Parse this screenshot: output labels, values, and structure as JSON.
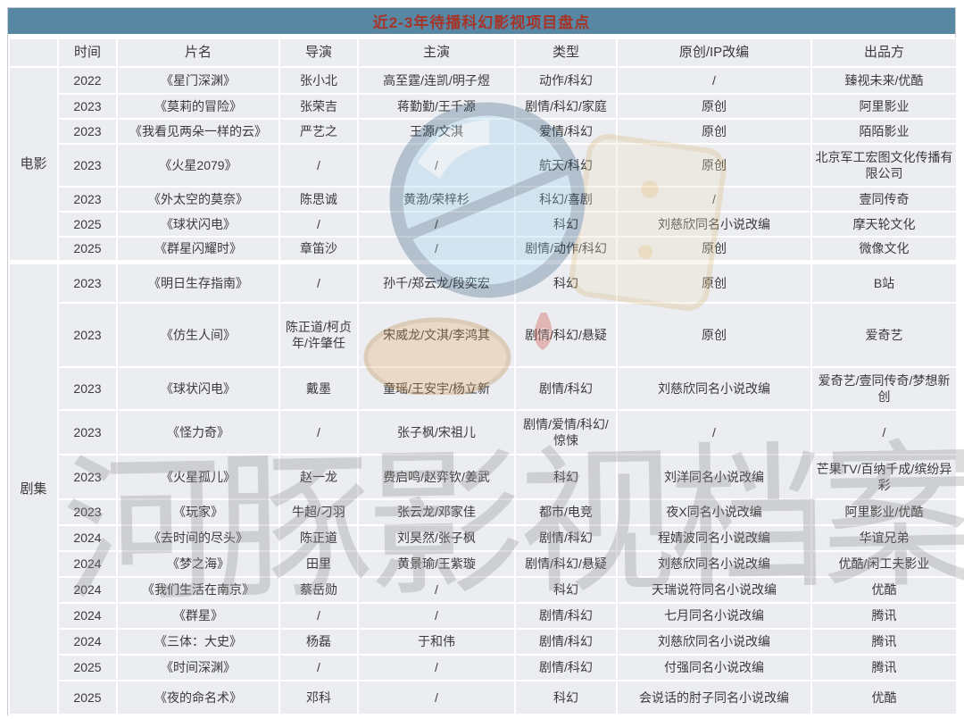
{
  "colors": {
    "title_bar_bg": "#5787a3",
    "title_text": "#a63428",
    "table_cell_bg": "#ebedf1",
    "gridline": "#ffffff",
    "body_text": "#3b3b3b"
  },
  "watermark": {
    "text": "河豚影视档案",
    "mascot": "puffer-fish-mascot"
  },
  "chart_data": {
    "type": "table",
    "title": "近2-3年待播科幻影视项目盘点",
    "columns": [
      "时间",
      "片名",
      "导演",
      "主演",
      "类型",
      "原创/IP改编",
      "出品方"
    ],
    "groups": [
      {
        "label": "电影",
        "rows": [
          {
            "year": "2022",
            "title": "《星门深渊》",
            "director": "张小北",
            "starring": "高至霆/连凯/明子煜",
            "genre": "动作/科幻",
            "adaptation": "/",
            "producer": "臻视未来/优酷"
          },
          {
            "year": "2023",
            "title": "《莫莉的冒险》",
            "director": "张荣吉",
            "starring": "蒋勤勤/王千源",
            "genre": "剧情/科幻/家庭",
            "adaptation": "原创",
            "producer": "阿里影业"
          },
          {
            "year": "2023",
            "title": "《我看见两朵一样的云》",
            "director": "严艺之",
            "starring": "王源/文淇",
            "genre": "爱情/科幻",
            "adaptation": "原创",
            "producer": "陌陌影业"
          },
          {
            "year": "2023",
            "title": "《火星2079》",
            "director": "/",
            "starring": "/",
            "genre": "航天/科幻",
            "adaptation": "原创",
            "producer": "北京军工宏图文化传播有限公司"
          },
          {
            "year": "2023",
            "title": "《外太空的莫奈》",
            "director": "陈思诚",
            "starring": "黄渤/荣梓杉",
            "genre": "科幻/喜剧",
            "adaptation": "/",
            "producer": "壹同传奇"
          },
          {
            "year": "2025",
            "title": "《球状闪电》",
            "director": "/",
            "starring": "/",
            "genre": "科幻",
            "adaptation": "刘慈欣同名小说改编",
            "producer": "摩天轮文化"
          },
          {
            "year": "2025",
            "title": "《群星闪耀时》",
            "director": "章笛沙",
            "starring": "/",
            "genre": "剧情/动作/科幻",
            "adaptation": "原创",
            "producer": "微像文化"
          }
        ]
      },
      {
        "label": "剧集",
        "rows": [
          {
            "year": "2023",
            "title": "《明日生存指南》",
            "director": "/",
            "starring": "孙千/郑云龙/段奕宏",
            "genre": "科幻",
            "adaptation": "原创",
            "producer": "B站"
          },
          {
            "year": "2023",
            "title": "《仿生人间》",
            "director": "陈正道/柯贞年/许肇任",
            "starring": "宋威龙/文淇/李鸿其",
            "genre": "剧情/科幻/悬疑",
            "adaptation": "原创",
            "producer": "爱奇艺"
          },
          {
            "year": "2023",
            "title": "《球状闪电》",
            "director": "戴墨",
            "starring": "童瑶/王安宇/杨立新",
            "genre": "剧情/科幻",
            "adaptation": "刘慈欣同名小说改编",
            "producer": "爱奇艺/壹同传奇/梦想新创"
          },
          {
            "year": "2023",
            "title": "《怪力奇》",
            "director": "/",
            "starring": "张子枫/宋祖儿",
            "genre": "剧情/爱情/科幻/惊悚",
            "adaptation": "/",
            "producer": "/"
          },
          {
            "year": "2023",
            "title": "《火星孤儿》",
            "director": "赵一龙",
            "starring": "费启鸣/赵弈钦/姜武",
            "genre": "科幻",
            "adaptation": "刘洋同名小说改编",
            "producer": "芒果TV/百纳千成/缤纷异彩"
          },
          {
            "year": "2023",
            "title": "《玩家》",
            "director": "牛超/刁羽",
            "starring": "张云龙/邓家佳",
            "genre": "都市/电竞",
            "adaptation": "夜X同名小说改编",
            "producer": "阿里影业/优酷"
          },
          {
            "year": "2024",
            "title": "《去时间的尽头》",
            "director": "陈正道",
            "starring": "刘昊然/张子枫",
            "genre": "剧情/科幻",
            "adaptation": "程婧波同名小说改编",
            "producer": "华谊兄弟"
          },
          {
            "year": "2024",
            "title": "《梦之海》",
            "director": "田里",
            "starring": "黄景瑜/王紫璇",
            "genre": "剧情/科幻/悬疑",
            "adaptation": "刘慈欣同名小说改编",
            "producer": "优酷/闲工夫影业"
          },
          {
            "year": "2024",
            "title": "《我们生活在南京》",
            "director": "蔡岳勋",
            "starring": "/",
            "genre": "科幻",
            "adaptation": "天瑞说符同名小说改编",
            "producer": "优酷"
          },
          {
            "year": "2024",
            "title": "《群星》",
            "director": "/",
            "starring": "/",
            "genre": "剧情/科幻",
            "adaptation": "七月同名小说改编",
            "producer": "腾讯"
          },
          {
            "year": "2024",
            "title": "《三体：大史》",
            "director": "杨磊",
            "starring": "于和伟",
            "genre": "剧情/科幻",
            "adaptation": "刘慈欣同名小说改编",
            "producer": "腾讯"
          },
          {
            "year": "2025",
            "title": "《时间深渊》",
            "director": "/",
            "starring": "/",
            "genre": "剧情/科幻",
            "adaptation": "付强同名小说改编",
            "producer": "腾讯"
          },
          {
            "year": "2025",
            "title": "《夜的命名术》",
            "director": "邓科",
            "starring": "/",
            "genre": "科幻",
            "adaptation": "会说话的肘子同名小说改编",
            "producer": "优酷"
          }
        ]
      }
    ]
  }
}
